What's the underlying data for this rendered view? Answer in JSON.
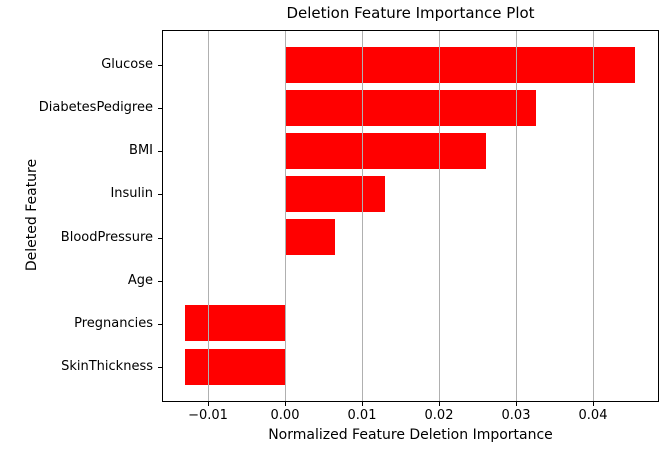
{
  "chart_data": {
    "type": "bar",
    "orientation": "horizontal",
    "title": "Deletion Feature Importance Plot",
    "xlabel": "Normalized Feature Deletion Importance",
    "ylabel": "Deleted Feature",
    "categories": [
      "Glucose",
      "DiabetesPedigree",
      "BMI",
      "Insulin",
      "BloodPressure",
      "Age",
      "Pregnancies",
      "SkinThickness"
    ],
    "values": [
      0.0456,
      0.0326,
      0.0261,
      0.013,
      0.0065,
      0.0,
      -0.013,
      -0.013
    ],
    "bar_color": "#ff0000",
    "grid": true,
    "grid_color": "#b0b0b0",
    "axis_color": "#000000",
    "background_color": "#ffffff",
    "xlim": [
      -0.0159,
      0.0485
    ],
    "xticks": [
      -0.01,
      0.0,
      0.01,
      0.02,
      0.03,
      0.04
    ],
    "xtick_labels": [
      "−0.01",
      "0.00",
      "0.01",
      "0.02",
      "0.03",
      "0.04"
    ],
    "legend": "none"
  }
}
